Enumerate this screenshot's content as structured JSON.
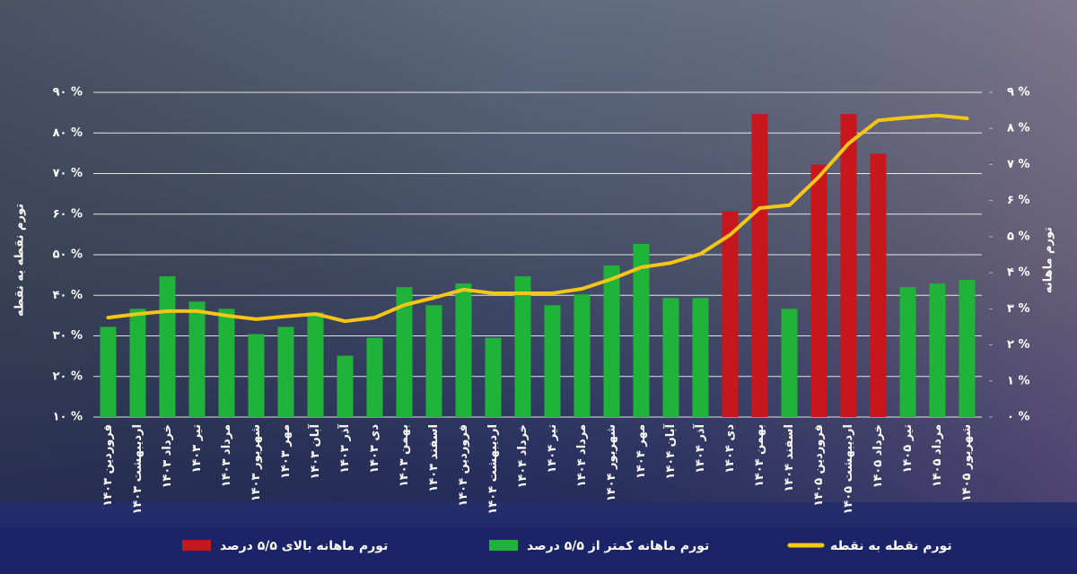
{
  "chart_data": {
    "type": "bar",
    "y_label": "تورم نقطه به نقطه",
    "y2_label": "تورم ماهانه",
    "categories": [
      "فروردین ۱۴۰۳",
      "اردیبهشت ۱۴۰۳",
      "خرداد ۱۴۰۳",
      "تیر ۱۴۰۳",
      "مرداد ۱۴۰۳",
      "شهریور ۱۴۰۳",
      "مهر ۱۴۰۳",
      "آبان ۱۴۰۳",
      "آذر ۱۴۰۳",
      "دی ۱۴۰۳",
      "بهمن ۱۴۰۳",
      "اسفند ۱۴۰۳",
      "فروردین ۱۴۰۴",
      "اردیبهشت ۱۴۰۴",
      "خرداد ۱۴۰۴",
      "تیر ۱۴۰۴",
      "مرداد ۱۴۰۴",
      "شهریور ۱۴۰۴",
      "مهر ۱۴۰۴",
      "آبان ۱۴۰۴",
      "آذر ۱۴۰۴",
      "دی ۱۴۰۴",
      "بهمن ۱۴۰۴",
      "اسفند ۱۴۰۴",
      "فروردین ۱۴۰۵",
      "اردیبهشت ۱۴۰۵",
      "خرداد ۱۴۰۵",
      "تیر ۱۴۰۵",
      "مرداد ۱۴۰۵",
      "شهریور ۱۴۰۵"
    ],
    "series": [
      {
        "name": "تورم ماهانه بالای ۵/۵ درصد",
        "type": "bar",
        "axis": "y2",
        "color": "#c8161d",
        "values": [
          null,
          null,
          null,
          null,
          null,
          null,
          null,
          null,
          null,
          null,
          null,
          null,
          null,
          null,
          null,
          null,
          null,
          null,
          null,
          null,
          null,
          5.7,
          8.4,
          null,
          7.0,
          8.4,
          7.3,
          null,
          null,
          null
        ]
      },
      {
        "name": "تورم ماهانه کمتر از ۵/۵ درصد",
        "type": "bar",
        "axis": "y2",
        "color": "#1fb33a",
        "values": [
          2.5,
          3.0,
          3.9,
          3.2,
          3.0,
          2.3,
          2.5,
          2.9,
          1.7,
          2.2,
          3.6,
          3.1,
          3.7,
          2.2,
          3.9,
          3.1,
          3.4,
          4.2,
          4.8,
          3.3,
          3.3,
          null,
          null,
          3.0,
          null,
          null,
          null,
          3.6,
          3.7,
          3.8
        ]
      },
      {
        "name": "تورم نقطه به نقطه",
        "type": "line",
        "color": "#f5c518",
        "values": [
          34.5,
          35.4,
          36.1,
          36.1,
          35.0,
          34.1,
          34.8,
          35.4,
          33.6,
          34.5,
          37.6,
          39.4,
          41.4,
          40.5,
          40.5,
          40.5,
          41.6,
          44.0,
          46.9,
          48.0,
          50.2,
          54.9,
          61.5,
          62.2,
          69.2,
          77.4,
          83.1,
          83.8,
          84.3,
          83.6
        ]
      }
    ],
    "ylim": [
      10,
      90
    ],
    "yticks": [
      {
        "value": 10,
        "label": "۱۰ %"
      },
      {
        "value": 20,
        "label": "۲۰ %"
      },
      {
        "value": 30,
        "label": "۳۰ %"
      },
      {
        "value": 40,
        "label": "۴۰ %"
      },
      {
        "value": 50,
        "label": "۵۰ %"
      },
      {
        "value": 60,
        "label": "۶۰ %"
      },
      {
        "value": 70,
        "label": "۷۰ %"
      },
      {
        "value": 80,
        "label": "۸۰ %"
      },
      {
        "value": 90,
        "label": "۹۰ %"
      }
    ],
    "y2lim": [
      0,
      9
    ],
    "y2ticks": [
      {
        "value": 0,
        "label": "۰ %"
      },
      {
        "value": 1,
        "label": "۱ %"
      },
      {
        "value": 2,
        "label": "۲ %"
      },
      {
        "value": 3,
        "label": "۳ %"
      },
      {
        "value": 4,
        "label": "۴ %"
      },
      {
        "value": 5,
        "label": "۵ %"
      },
      {
        "value": 6,
        "label": "۶ %"
      },
      {
        "value": 7,
        "label": "۷ %"
      },
      {
        "value": 8,
        "label": "۸ %"
      },
      {
        "value": 9,
        "label": "۹ %"
      }
    ],
    "grid": true
  }
}
